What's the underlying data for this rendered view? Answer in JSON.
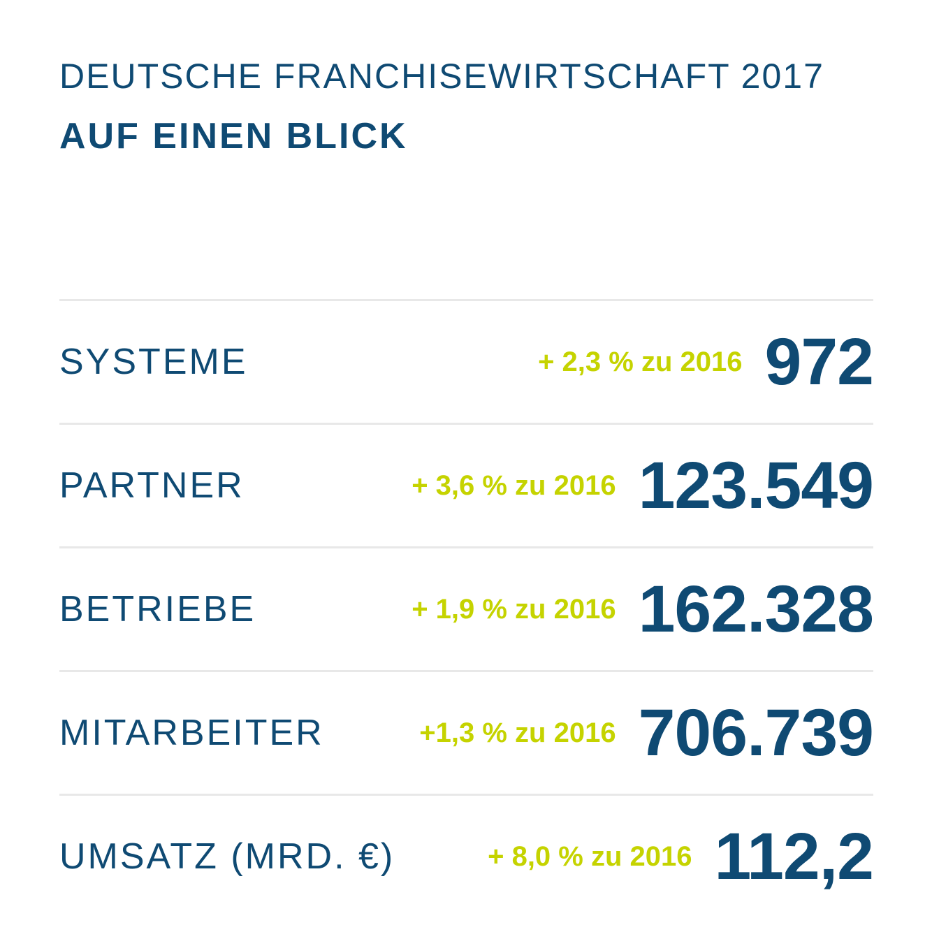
{
  "header": {
    "title": "DEUTSCHE FRANCHISEWIRTSCHAFT 2017",
    "subtitle": "AUF EINEN BLICK"
  },
  "rows": [
    {
      "label": "SYSTEME",
      "change": "+ 2,3 % zu 2016",
      "value": "972"
    },
    {
      "label": "PARTNER",
      "change": "+ 3,6 % zu 2016",
      "value": "123.549"
    },
    {
      "label": "BETRIEBE",
      "change": "+ 1,9 % zu 2016",
      "value": "162.328"
    },
    {
      "label": "MITARBEITER",
      "change": "+1,3 % zu 2016",
      "value": "706.739"
    },
    {
      "label": "UMSATZ (MRD. €)",
      "change": "+ 8,0 % zu 2016",
      "value": "112,2"
    }
  ]
}
